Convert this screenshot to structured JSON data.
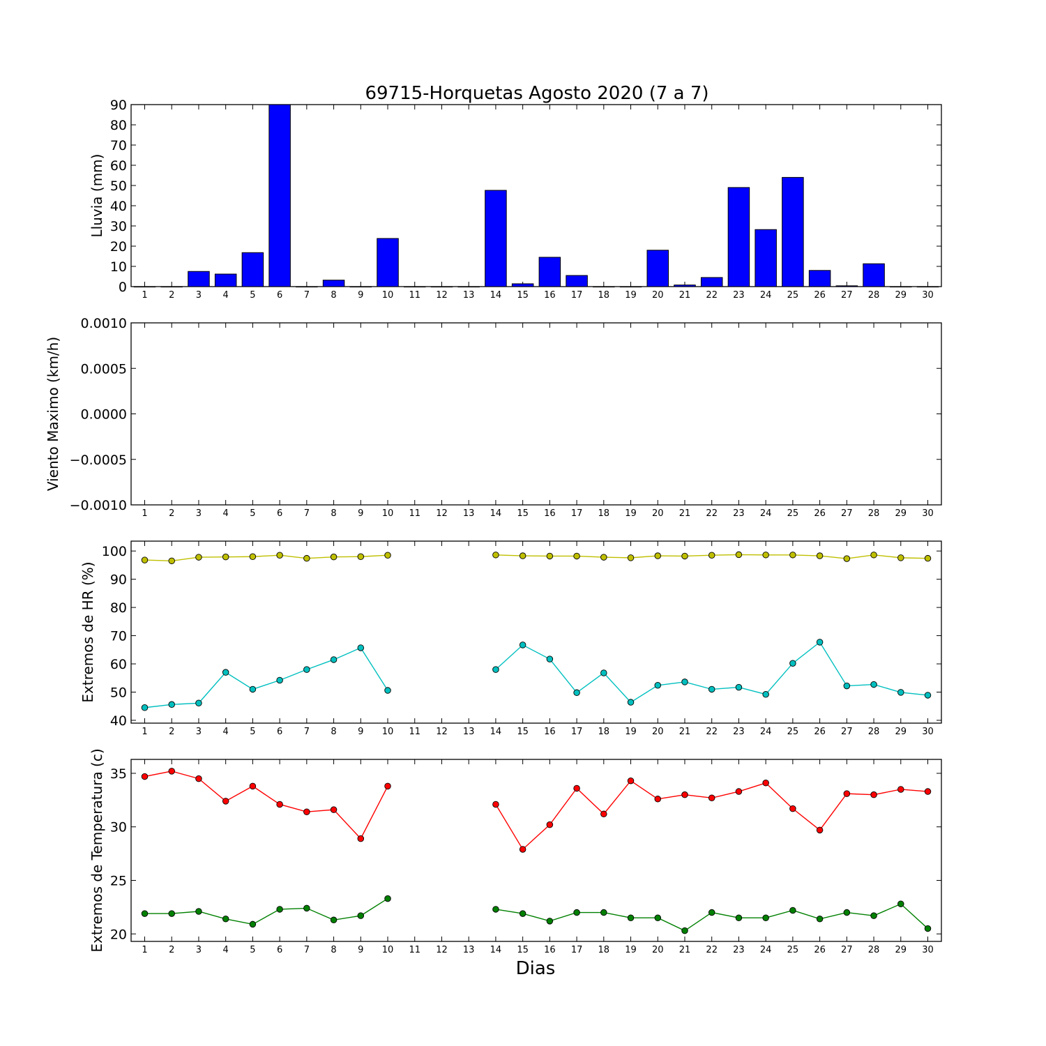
{
  "chart_data": [
    {
      "type": "bar",
      "title": "69715-Horquetas Agosto 2020  (7 a 7)",
      "ylabel": "Lluvia (mm)",
      "ylim": [
        0,
        90
      ],
      "yticks": [
        0,
        10,
        20,
        30,
        40,
        50,
        60,
        70,
        80,
        90
      ],
      "x": [
        1,
        2,
        3,
        4,
        5,
        6,
        7,
        8,
        9,
        10,
        11,
        12,
        13,
        14,
        15,
        16,
        17,
        18,
        19,
        20,
        21,
        22,
        23,
        24,
        25,
        26,
        27,
        28,
        29,
        30
      ],
      "values": [
        0,
        0,
        7.5,
        6.2,
        16.8,
        90,
        0,
        3.2,
        0,
        23.8,
        0,
        0,
        0,
        47.6,
        1.4,
        14.5,
        5.5,
        0,
        0,
        18,
        0.8,
        4.5,
        49,
        28.2,
        54,
        8,
        0.4,
        11.3,
        0,
        0
      ],
      "color": "#0000ff"
    },
    {
      "type": "line",
      "ylabel": "Viento Maximo (km/h)",
      "ylim": [
        -0.001,
        0.001
      ],
      "yticks": [
        "−0.0010",
        "−0.0005",
        "0.0000",
        "0.0005",
        "0.0010"
      ],
      "x": [
        1,
        2,
        3,
        4,
        5,
        6,
        7,
        8,
        9,
        10,
        11,
        12,
        13,
        14,
        15,
        16,
        17,
        18,
        19,
        20,
        21,
        22,
        23,
        24,
        25,
        26,
        27,
        28,
        29,
        30
      ],
      "series": []
    },
    {
      "type": "line",
      "ylabel": "Extremos de HR (%)",
      "ylim": [
        39,
        103.5
      ],
      "yticks": [
        40,
        50,
        60,
        70,
        80,
        90,
        100
      ],
      "x": [
        1,
        2,
        3,
        4,
        5,
        6,
        7,
        8,
        9,
        10,
        11,
        12,
        13,
        14,
        15,
        16,
        17,
        18,
        19,
        20,
        21,
        22,
        23,
        24,
        25,
        26,
        27,
        28,
        29,
        30
      ],
      "series": [
        {
          "color": "#bfbf00",
          "values": [
            96.8,
            96.5,
            97.8,
            97.9,
            98.0,
            98.5,
            97.4,
            97.9,
            98.0,
            98.5,
            null,
            null,
            null,
            98.6,
            98.3,
            98.2,
            98.2,
            97.8,
            97.6,
            98.3,
            98.2,
            98.5,
            98.7,
            98.6,
            98.6,
            98.3,
            97.3,
            98.6,
            97.6,
            97.4
          ]
        },
        {
          "color": "#00bfbf",
          "values": [
            44.5,
            45.6,
            46.1,
            57.0,
            51.0,
            54.2,
            58.0,
            61.5,
            65.7,
            50.6,
            null,
            null,
            null,
            58.0,
            66.7,
            61.7,
            49.8,
            56.8,
            46.4,
            52.4,
            53.6,
            51.0,
            51.7,
            49.2,
            60.2,
            67.7,
            52.2,
            52.7,
            49.9,
            48.9
          ]
        }
      ]
    },
    {
      "type": "line",
      "ylabel": "Extremos de Temperatura (c)",
      "ylim": [
        19.3,
        36.3
      ],
      "yticks": [
        20,
        25,
        30,
        35
      ],
      "xlabel": "Dias",
      "x": [
        1,
        2,
        3,
        4,
        5,
        6,
        7,
        8,
        9,
        10,
        11,
        12,
        13,
        14,
        15,
        16,
        17,
        18,
        19,
        20,
        21,
        22,
        23,
        24,
        25,
        26,
        27,
        28,
        29,
        30
      ],
      "series": [
        {
          "color": "#ff0000",
          "values": [
            34.7,
            35.2,
            34.5,
            32.4,
            33.8,
            32.1,
            31.4,
            31.6,
            28.9,
            33.8,
            null,
            null,
            null,
            32.1,
            27.9,
            30.2,
            33.6,
            31.2,
            34.3,
            32.6,
            33.0,
            32.7,
            33.3,
            34.1,
            31.7,
            29.7,
            33.1,
            33.0,
            33.5,
            33.3
          ]
        },
        {
          "color": "#008000",
          "values": [
            21.9,
            21.9,
            22.1,
            21.4,
            20.9,
            22.3,
            22.4,
            21.3,
            21.7,
            23.3,
            null,
            null,
            null,
            22.3,
            21.9,
            21.2,
            22.0,
            22.0,
            21.5,
            21.5,
            20.3,
            22.0,
            21.5,
            21.5,
            22.2,
            21.4,
            22.0,
            21.7,
            22.8,
            20.5
          ]
        }
      ]
    }
  ]
}
